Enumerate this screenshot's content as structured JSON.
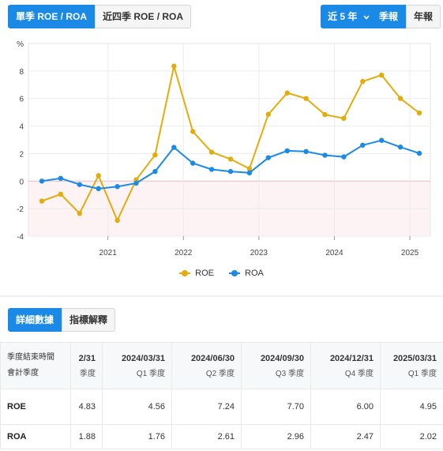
{
  "toggle_ratio": {
    "options": [
      "單季 ROE / ROA",
      "近四季 ROE / ROA"
    ],
    "selected": 0
  },
  "range_select": {
    "value": "近 5 年"
  },
  "period_toggle": {
    "options": [
      "季報",
      "年報"
    ],
    "selected": 0
  },
  "colors": {
    "accent": "#1a8ae6",
    "roe": "#e3ac0c",
    "roa": "#1a8ae6"
  },
  "chart_data": {
    "type": "line",
    "ylabel": "%",
    "ylim": [
      -4,
      10
    ],
    "yticks": [
      -4,
      -2,
      0,
      2,
      4,
      6,
      8
    ],
    "xticks": [
      "2021",
      "2022",
      "2023",
      "2024",
      "2025"
    ],
    "negative_shaded": true,
    "legend_position": "bottom",
    "x": [
      "2020Q1",
      "2020Q2",
      "2020Q3",
      "2020Q4",
      "2021Q1",
      "2021Q2",
      "2021Q3",
      "2021Q4",
      "2022Q1",
      "2022Q2",
      "2022Q3",
      "2022Q4",
      "2023Q1",
      "2023Q2",
      "2023Q3",
      "2023Q4",
      "2024Q1",
      "2024Q2",
      "2024Q3",
      "2024Q4",
      "2025Q1"
    ],
    "series": [
      {
        "name": "ROE",
        "values": [
          -1.45,
          -0.95,
          -2.35,
          0.4,
          -2.85,
          0.1,
          1.9,
          8.35,
          3.6,
          2.1,
          1.6,
          0.9,
          4.85,
          6.4,
          6.0,
          4.83,
          4.56,
          7.24,
          7.7,
          6.0,
          4.95
        ]
      },
      {
        "name": "ROA",
        "values": [
          0.0,
          0.2,
          -0.25,
          -0.55,
          -0.4,
          -0.15,
          0.7,
          2.45,
          1.3,
          0.85,
          0.7,
          0.6,
          1.7,
          2.2,
          2.15,
          1.88,
          1.76,
          2.61,
          2.96,
          2.47,
          2.02
        ]
      }
    ]
  },
  "tabs": {
    "detail": "詳細數據",
    "explain": "指標解釋"
  },
  "table": {
    "rowhead": [
      "季度結束時間",
      "會計季度"
    ],
    "columns": [
      {
        "date": "2/31",
        "quarter": "季度"
      },
      {
        "date": "2024/03/31",
        "quarter": "Q1 季度"
      },
      {
        "date": "2024/06/30",
        "quarter": "Q2 季度"
      },
      {
        "date": "2024/09/30",
        "quarter": "Q3 季度"
      },
      {
        "date": "2024/12/31",
        "quarter": "Q4 季度"
      },
      {
        "date": "2025/03/31",
        "quarter": "Q1 季度"
      }
    ],
    "rows": [
      {
        "label": "ROE",
        "values": [
          "4.83",
          "4.56",
          "7.24",
          "7.70",
          "6.00",
          "4.95"
        ]
      },
      {
        "label": "ROA",
        "values": [
          "1.88",
          "1.76",
          "2.61",
          "2.96",
          "2.47",
          "2.02"
        ]
      }
    ]
  }
}
